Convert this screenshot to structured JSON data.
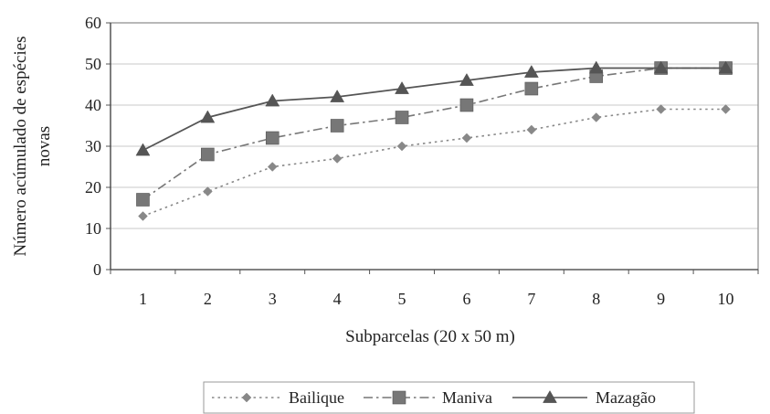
{
  "chart_data": {
    "type": "line",
    "title": "",
    "xlabel": "Subparcelas (20 x 50 m)",
    "ylabel_lines": [
      "Número acúmulado de espécies",
      "novas"
    ],
    "categories": [
      "1",
      "2",
      "3",
      "4",
      "5",
      "6",
      "7",
      "8",
      "9",
      "10"
    ],
    "ylim": [
      0,
      60
    ],
    "yticks": [
      "0",
      "10",
      "20",
      "30",
      "40",
      "50",
      "60"
    ],
    "grid": true,
    "legend_position": "bottom",
    "series": [
      {
        "name": "Bailique",
        "marker": "diamond",
        "line_style": "dotted",
        "color": "#888888",
        "values": [
          13,
          19,
          25,
          27,
          30,
          32,
          34,
          37,
          39,
          39
        ]
      },
      {
        "name": "Maniva",
        "marker": "square",
        "line_style": "dash-dot",
        "color": "#777777",
        "values": [
          17,
          28,
          32,
          35,
          37,
          40,
          44,
          47,
          49,
          49
        ]
      },
      {
        "name": "Mazagão",
        "marker": "triangle",
        "line_style": "solid",
        "color": "#555555",
        "values": [
          29,
          37,
          41,
          42,
          44,
          46,
          48,
          49,
          49,
          49
        ]
      }
    ]
  }
}
